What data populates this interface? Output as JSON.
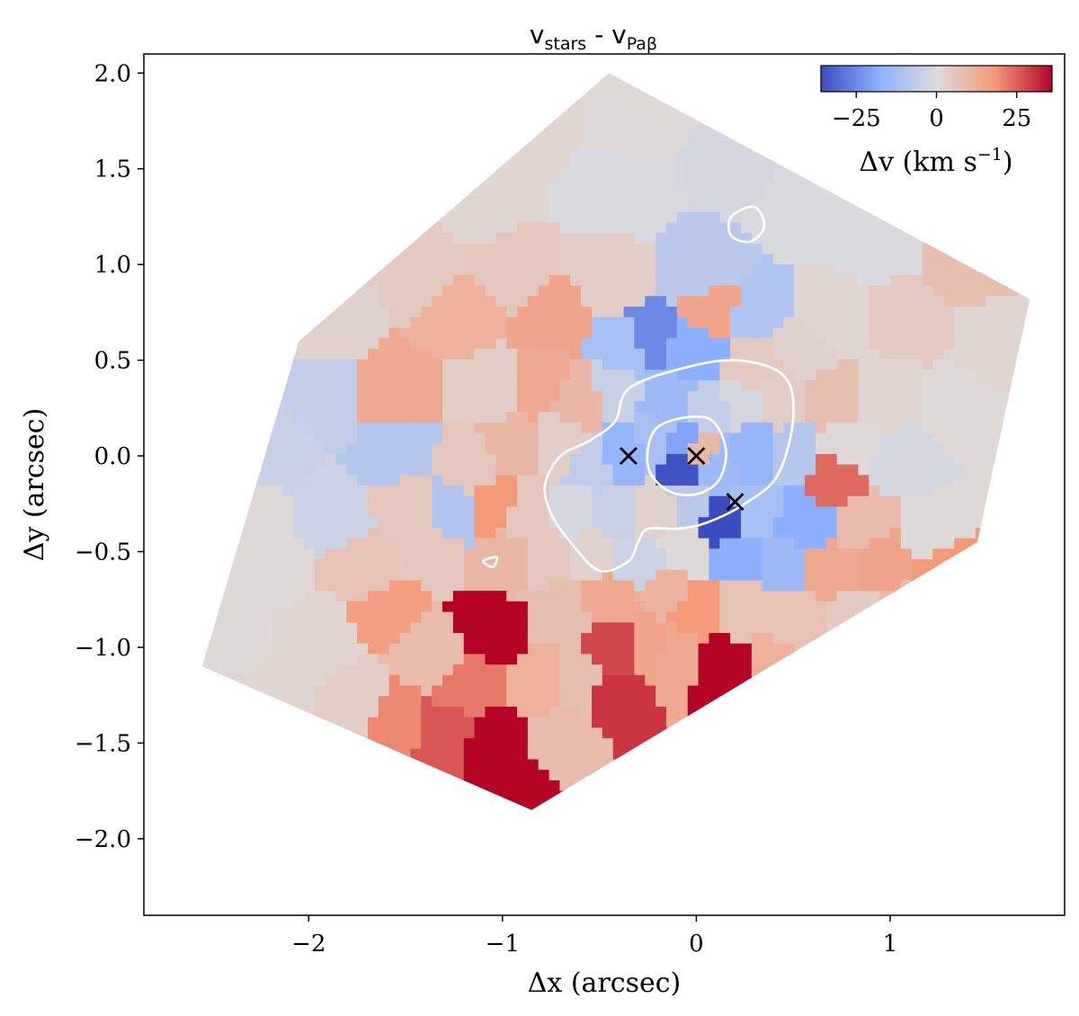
{
  "chart_data": {
    "type": "heatmap",
    "title": {
      "main": "v",
      "sub1": "stars",
      "mid": " - v",
      "sub2": "Paβ"
    },
    "xlabel": "Δx (arcsec)",
    "ylabel": "Δy (arcsec)",
    "xlim": [
      -2.85,
      1.9
    ],
    "ylim": [
      -2.4,
      2.1
    ],
    "xticks": [
      {
        "value": -2,
        "label": "−2"
      },
      {
        "value": -1,
        "label": "−1"
      },
      {
        "value": 0,
        "label": "0"
      },
      {
        "value": 1,
        "label": "1"
      }
    ],
    "yticks": [
      {
        "value": 2.0,
        "label": "2.0"
      },
      {
        "value": 1.5,
        "label": "1.5"
      },
      {
        "value": 1.0,
        "label": "1.0"
      },
      {
        "value": 0.5,
        "label": "0.5"
      },
      {
        "value": 0.0,
        "label": "0.0"
      },
      {
        "value": -0.5,
        "label": "−0.5"
      },
      {
        "value": -1.0,
        "label": "−1.0"
      },
      {
        "value": -1.5,
        "label": "−1.5"
      },
      {
        "value": -2.0,
        "label": "−2.0"
      }
    ],
    "colorbar": {
      "cmap": "coolwarm",
      "range": [
        -36,
        36
      ],
      "ticks": [
        {
          "value": -25,
          "label": "−25"
        },
        {
          "value": 0,
          "label": "0"
        },
        {
          "value": 25,
          "label": "25"
        }
      ],
      "label_main": "Δv (km s",
      "label_sup": "−1",
      "label_end": ")",
      "location": "top-right",
      "colors": [
        "#3b4cc0",
        "#8db0fe",
        "#dddcdc",
        "#f49a7b",
        "#b40426"
      ]
    },
    "markers": [
      {
        "symbol": "x",
        "x": -0.35,
        "y": 0.0
      },
      {
        "symbol": "x",
        "x": 0.0,
        "y": 0.0
      },
      {
        "symbol": "x",
        "x": 0.2,
        "y": -0.24
      }
    ],
    "region": {
      "corners": [
        [
          -0.45,
          2.0
        ],
        [
          1.72,
          0.82
        ],
        [
          1.45,
          -0.45
        ],
        [
          -0.85,
          -1.85
        ],
        [
          -2.55,
          -1.1
        ],
        [
          -2.05,
          0.6
        ]
      ]
    },
    "bins": [
      {
        "x": -1.5,
        "y": 1.7,
        "v": 1
      },
      {
        "x": -0.9,
        "y": 1.75,
        "v": 2
      },
      {
        "x": -0.3,
        "y": 1.8,
        "v": 1
      },
      {
        "x": 0.2,
        "y": 1.55,
        "v": -2
      },
      {
        "x": -0.4,
        "y": 1.35,
        "v": -1
      },
      {
        "x": -1.1,
        "y": 1.35,
        "v": 2
      },
      {
        "x": -1.7,
        "y": 1.25,
        "v": 1
      },
      {
        "x": 0.55,
        "y": 1.3,
        "v": -1
      },
      {
        "x": 0.95,
        "y": 1.15,
        "v": -1
      },
      {
        "x": 1.4,
        "y": 1.0,
        "v": 8
      },
      {
        "x": -1.4,
        "y": 0.95,
        "v": 5
      },
      {
        "x": -1.9,
        "y": 0.75,
        "v": 3
      },
      {
        "x": -0.95,
        "y": 0.95,
        "v": 6
      },
      {
        "x": -0.45,
        "y": 0.95,
        "v": 4
      },
      {
        "x": 0.05,
        "y": 0.95,
        "v": -8
      },
      {
        "x": 0.3,
        "y": 0.75,
        "v": -10
      },
      {
        "x": 0.7,
        "y": 0.7,
        "v": 2
      },
      {
        "x": 1.1,
        "y": 0.7,
        "v": 5
      },
      {
        "x": 1.55,
        "y": 0.6,
        "v": 2
      },
      {
        "x": -1.2,
        "y": 0.75,
        "v": 12
      },
      {
        "x": -0.75,
        "y": 0.72,
        "v": 15
      },
      {
        "x": 0.1,
        "y": 0.78,
        "v": 15
      },
      {
        "x": -0.35,
        "y": 0.55,
        "v": -12
      },
      {
        "x": -0.25,
        "y": 0.58,
        "v": -25
      },
      {
        "x": -0.02,
        "y": 0.55,
        "v": -18
      },
      {
        "x": 0.3,
        "y": 0.45,
        "v": 5
      },
      {
        "x": 0.55,
        "y": 0.55,
        "v": 3
      },
      {
        "x": -1.9,
        "y": 0.3,
        "v": -6
      },
      {
        "x": -2.2,
        "y": 0.05,
        "v": -5
      },
      {
        "x": -1.55,
        "y": 0.3,
        "v": 14
      },
      {
        "x": -1.05,
        "y": 0.35,
        "v": 4
      },
      {
        "x": -0.8,
        "y": 0.38,
        "v": 14
      },
      {
        "x": -0.6,
        "y": 0.3,
        "v": 10
      },
      {
        "x": -0.42,
        "y": 0.35,
        "v": -5
      },
      {
        "x": -0.15,
        "y": 0.3,
        "v": -14
      },
      {
        "x": 0.08,
        "y": 0.25,
        "v": -6
      },
      {
        "x": 0.22,
        "y": 0.28,
        "v": -2
      },
      {
        "x": 0.42,
        "y": 0.3,
        "v": 4
      },
      {
        "x": 0.7,
        "y": 0.3,
        "v": 8
      },
      {
        "x": 1.0,
        "y": 0.3,
        "v": 2
      },
      {
        "x": 1.3,
        "y": 0.25,
        "v": 1
      },
      {
        "x": -1.55,
        "y": 0.0,
        "v": -9
      },
      {
        "x": -1.15,
        "y": -0.05,
        "v": 6
      },
      {
        "x": -0.95,
        "y": 0.05,
        "v": 10
      },
      {
        "x": -0.7,
        "y": 0.05,
        "v": 4
      },
      {
        "x": -0.55,
        "y": -0.05,
        "v": -7
      },
      {
        "x": -0.38,
        "y": 0.0,
        "v": -16
      },
      {
        "x": -0.2,
        "y": 0.08,
        "v": -12
      },
      {
        "x": -0.08,
        "y": 0.05,
        "v": -20
      },
      {
        "x": 0.02,
        "y": 0.02,
        "v": 10
      },
      {
        "x": 0.12,
        "y": -0.05,
        "v": -14
      },
      {
        "x": 0.28,
        "y": 0.02,
        "v": -16
      },
      {
        "x": 0.5,
        "y": 0.0,
        "v": -9
      },
      {
        "x": 0.78,
        "y": 0.05,
        "v": 1
      },
      {
        "x": 1.05,
        "y": -0.02,
        "v": -2
      },
      {
        "x": 0.72,
        "y": -0.12,
        "v": 24
      },
      {
        "x": -0.06,
        "y": -0.05,
        "v": -35
      },
      {
        "x": -2.3,
        "y": -0.35,
        "v": 1
      },
      {
        "x": -1.85,
        "y": -0.3,
        "v": -4
      },
      {
        "x": -1.5,
        "y": -0.25,
        "v": 6
      },
      {
        "x": -1.25,
        "y": -0.3,
        "v": -10
      },
      {
        "x": -1.05,
        "y": -0.25,
        "v": 18
      },
      {
        "x": -0.85,
        "y": -0.3,
        "v": 6
      },
      {
        "x": -0.62,
        "y": -0.3,
        "v": -2
      },
      {
        "x": -0.42,
        "y": -0.3,
        "v": -5
      },
      {
        "x": -0.22,
        "y": -0.3,
        "v": 3
      },
      {
        "x": -0.02,
        "y": -0.28,
        "v": -8
      },
      {
        "x": 0.12,
        "y": -0.33,
        "v": -36
      },
      {
        "x": 0.3,
        "y": -0.3,
        "v": -12
      },
      {
        "x": 0.55,
        "y": -0.35,
        "v": -18
      },
      {
        "x": 0.85,
        "y": -0.35,
        "v": 9
      },
      {
        "x": 1.2,
        "y": -0.4,
        "v": 1
      },
      {
        "x": -2.2,
        "y": -0.6,
        "v": 1
      },
      {
        "x": -1.7,
        "y": -0.6,
        "v": 7
      },
      {
        "x": -1.35,
        "y": -0.5,
        "v": 6
      },
      {
        "x": -1.0,
        "y": -0.55,
        "v": 10
      },
      {
        "x": -0.75,
        "y": -0.55,
        "v": 6
      },
      {
        "x": -0.55,
        "y": -0.5,
        "v": 3
      },
      {
        "x": -0.3,
        "y": -0.55,
        "v": -4
      },
      {
        "x": -0.05,
        "y": -0.5,
        "v": 1
      },
      {
        "x": 0.2,
        "y": -0.55,
        "v": -18
      },
      {
        "x": 0.45,
        "y": -0.55,
        "v": -14
      },
      {
        "x": 0.7,
        "y": -0.6,
        "v": 14
      },
      {
        "x": 0.95,
        "y": -0.55,
        "v": 15
      },
      {
        "x": 1.3,
        "y": -0.6,
        "v": 18
      },
      {
        "x": -2.4,
        "y": -0.95,
        "v": 1
      },
      {
        "x": -1.95,
        "y": -0.95,
        "v": 2
      },
      {
        "x": -1.6,
        "y": -0.8,
        "v": 17
      },
      {
        "x": -1.35,
        "y": -1.05,
        "v": 9
      },
      {
        "x": -1.05,
        "y": -0.9,
        "v": 36
      },
      {
        "x": -0.7,
        "y": -0.8,
        "v": 8
      },
      {
        "x": -0.45,
        "y": -0.75,
        "v": 14
      },
      {
        "x": -0.15,
        "y": -0.7,
        "v": 11
      },
      {
        "x": 0.0,
        "y": -0.8,
        "v": 18
      },
      {
        "x": 0.2,
        "y": -0.8,
        "v": 7
      },
      {
        "x": 0.5,
        "y": -0.85,
        "v": 7
      },
      {
        "x": 0.8,
        "y": -0.85,
        "v": 5
      },
      {
        "x": 1.1,
        "y": -0.85,
        "v": 9
      },
      {
        "x": -0.4,
        "y": -1.0,
        "v": 28
      },
      {
        "x": -0.25,
        "y": -1.0,
        "v": 15
      },
      {
        "x": -0.1,
        "y": -1.05,
        "v": 14
      },
      {
        "x": 0.12,
        "y": -1.1,
        "v": 36
      },
      {
        "x": -0.8,
        "y": -1.2,
        "v": 12
      },
      {
        "x": -0.6,
        "y": -1.2,
        "v": 8
      },
      {
        "x": -0.45,
        "y": -1.25,
        "v": 30
      },
      {
        "x": -2.2,
        "y": -1.25,
        "v": 2
      },
      {
        "x": -1.75,
        "y": -1.3,
        "v": 4
      },
      {
        "x": -1.55,
        "y": -1.4,
        "v": 20
      },
      {
        "x": -1.3,
        "y": -1.45,
        "v": 26
      },
      {
        "x": -1.05,
        "y": -1.5,
        "v": 36
      },
      {
        "x": -0.95,
        "y": -1.7,
        "v": 36
      },
      {
        "x": -0.7,
        "y": -1.45,
        "v": 9
      },
      {
        "x": 0.4,
        "y": -1.1,
        "v": 12
      },
      {
        "x": 0.65,
        "y": -1.15,
        "v": 10
      },
      {
        "x": 0.95,
        "y": -1.1,
        "v": 8
      },
      {
        "x": -1.2,
        "y": -1.2,
        "v": 22
      }
    ],
    "contours": [
      [
        [
          -0.35,
          0.35
        ],
        [
          -0.1,
          0.45
        ],
        [
          0.2,
          0.5
        ],
        [
          0.45,
          0.42
        ],
        [
          0.5,
          0.2
        ],
        [
          0.42,
          -0.1
        ],
        [
          0.25,
          -0.25
        ],
        [
          0.05,
          -0.35
        ],
        [
          -0.1,
          -0.38
        ],
        [
          -0.25,
          -0.38
        ],
        [
          -0.3,
          -0.45
        ],
        [
          -0.35,
          -0.55
        ],
        [
          -0.5,
          -0.6
        ],
        [
          -0.65,
          -0.45
        ],
        [
          -0.75,
          -0.3
        ],
        [
          -0.78,
          -0.15
        ],
        [
          -0.7,
          0.0
        ],
        [
          -0.55,
          0.08
        ],
        [
          -0.42,
          0.18
        ]
      ],
      [
        [
          -0.2,
          0.15
        ],
        [
          0.05,
          0.2
        ],
        [
          0.15,
          0.05
        ],
        [
          0.12,
          -0.12
        ],
        [
          0.0,
          -0.2
        ],
        [
          -0.15,
          -0.18
        ],
        [
          -0.25,
          -0.05
        ]
      ],
      [
        [
          0.18,
          1.25
        ],
        [
          0.3,
          1.3
        ],
        [
          0.35,
          1.2
        ],
        [
          0.28,
          1.12
        ],
        [
          0.18,
          1.15
        ]
      ],
      [
        [
          -1.1,
          -0.55
        ],
        [
          -1.03,
          -0.53
        ],
        [
          -1.05,
          -0.58
        ]
      ]
    ]
  }
}
